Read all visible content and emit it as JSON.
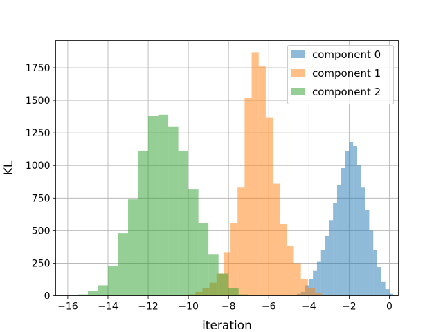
{
  "chart_data": {
    "type": "histogram",
    "title": "",
    "xlabel": "iteration",
    "ylabel": "KL",
    "xlim": [
      -16.6,
      0.45
    ],
    "ylim": [
      0,
      1960
    ],
    "xticks": [
      -16,
      -14,
      -12,
      -10,
      -8,
      -6,
      -4,
      -2,
      0
    ],
    "yticks": [
      0,
      250,
      500,
      750,
      1000,
      1250,
      1500,
      1750
    ],
    "grid": true,
    "legend_position": "top-right",
    "series": [
      {
        "name": "component 0",
        "color": "#1f77b4",
        "opacity": 0.5,
        "bin_start": -4.8,
        "bin_width": 0.2,
        "counts": [
          5,
          15,
          30,
          80,
          130,
          190,
          260,
          350,
          460,
          580,
          710,
          850,
          980,
          1110,
          1180,
          1150,
          1000,
          830,
          660,
          500,
          350,
          220,
          110,
          50,
          15
        ]
      },
      {
        "name": "component 1",
        "color": "#ff7f0e",
        "opacity": 0.5,
        "bin_start": -10.0,
        "bin_width": 0.35,
        "counts": [
          10,
          30,
          60,
          100,
          170,
          330,
          560,
          830,
          1520,
          1870,
          1760,
          1370,
          860,
          550,
          380,
          250,
          130,
          60,
          20,
          5
        ]
      },
      {
        "name": "component 2",
        "color": "#2ca02c",
        "opacity": 0.5,
        "bin_start": -15.5,
        "bin_width": 0.5,
        "counts": [
          10,
          40,
          80,
          230,
          480,
          740,
          1110,
          1380,
          1390,
          1300,
          1110,
          820,
          560,
          320,
          170,
          60,
          10
        ]
      }
    ]
  }
}
